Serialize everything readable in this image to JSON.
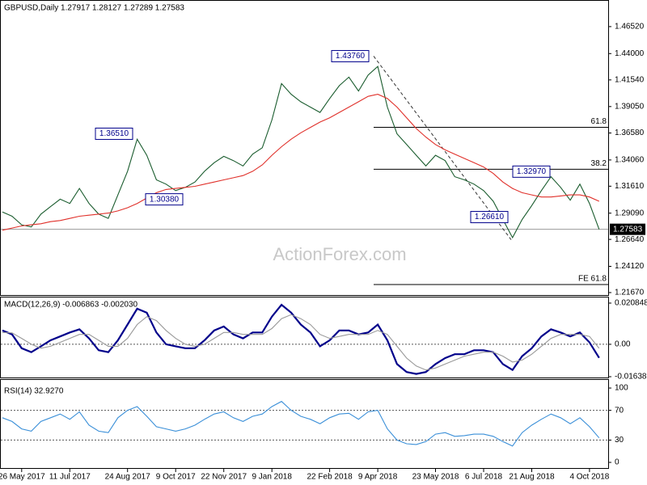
{
  "chart_data": [
    {
      "type": "line",
      "title": "GBPUSD,Daily  1.27917 1.28127 1.27289 1.27583",
      "watermark": "ActionForex.com",
      "categories": [
        null,
        null,
        "26 May 2017",
        null,
        null,
        null,
        null,
        "11 Jul 2017",
        null,
        null,
        null,
        null,
        null,
        "24 Aug 2017",
        null,
        null,
        null,
        null,
        "9 Oct 2017",
        null,
        null,
        null,
        null,
        "22 Nov 2017",
        null,
        null,
        null,
        null,
        "9 Jan 2018",
        null,
        null,
        null,
        null,
        null,
        "22 Feb 2018",
        null,
        null,
        null,
        null,
        "9 Apr 2018",
        null,
        null,
        null,
        null,
        null,
        "23 May 2018",
        null,
        null,
        null,
        null,
        "6 Jul 2018",
        null,
        null,
        null,
        null,
        "21 Aug 2018",
        null,
        null,
        null,
        null,
        null,
        "4 Oct 2018",
        null
      ],
      "series": [
        {
          "color": "#1a5c2e",
          "values": [
            1.292,
            1.288,
            1.28,
            1.278,
            1.29,
            1.297,
            1.304,
            1.3,
            1.314,
            1.3,
            1.29,
            1.286,
            1.308,
            1.33,
            1.36,
            1.345,
            1.322,
            1.318,
            1.312,
            1.315,
            1.32,
            1.33,
            1.338,
            1.344,
            1.34,
            1.335,
            1.346,
            1.352,
            1.378,
            1.412,
            1.402,
            1.395,
            1.39,
            1.385,
            1.398,
            1.41,
            1.418,
            1.405,
            1.42,
            1.428,
            1.39,
            1.365,
            1.355,
            1.345,
            1.335,
            1.345,
            1.34,
            1.325,
            1.322,
            1.318,
            1.312,
            1.302,
            1.285,
            1.268,
            1.285,
            1.298,
            1.312,
            1.325,
            1.315,
            1.303,
            1.318,
            1.3,
            1.27583
          ]
        },
        {
          "color": "#e0302a",
          "values": [
            1.275,
            1.277,
            1.279,
            1.28,
            1.281,
            1.283,
            1.284,
            1.286,
            1.288,
            1.289,
            1.29,
            1.291,
            1.293,
            1.296,
            1.3,
            1.305,
            1.31,
            1.313,
            1.314,
            1.315,
            1.316,
            1.318,
            1.32,
            1.322,
            1.324,
            1.326,
            1.33,
            1.336,
            1.345,
            1.353,
            1.36,
            1.366,
            1.371,
            1.376,
            1.38,
            1.385,
            1.39,
            1.395,
            1.4,
            1.402,
            1.398,
            1.39,
            1.38,
            1.37,
            1.362,
            1.355,
            1.35,
            1.346,
            1.342,
            1.338,
            1.334,
            1.328,
            1.32,
            1.314,
            1.31,
            1.308,
            1.306,
            1.306,
            1.307,
            1.308,
            1.308,
            1.306,
            1.302
          ]
        }
      ],
      "ylim": [
        1.2144,
        1.4893
      ],
      "yticks": [
        {
          "value": 1.4652,
          "label": "1.46520"
        },
        {
          "value": 1.44,
          "label": "1.44000"
        },
        {
          "value": 1.4154,
          "label": "1.41540"
        },
        {
          "value": 1.3905,
          "label": "1.39050"
        },
        {
          "value": 1.3658,
          "label": "1.36580"
        },
        {
          "value": 1.3406,
          "label": "1.34060"
        },
        {
          "value": 1.3161,
          "label": "1.31610"
        },
        {
          "value": 1.2909,
          "label": "1.29090"
        },
        {
          "value": 1.2664,
          "label": "1.26640"
        },
        {
          "value": 1.2412,
          "label": "1.24120"
        },
        {
          "value": 1.2167,
          "label": "1.21670"
        }
      ],
      "last_price": 1.27583,
      "annotations": [
        {
          "value": 1.4376,
          "label": "1.43760"
        },
        {
          "value": 1.3651,
          "label": "1.36510"
        },
        {
          "value": 1.3038,
          "label": "1.30380"
        },
        {
          "value": 1.3297,
          "label": "1.32970"
        },
        {
          "value": 1.2661,
          "label": "1.26610"
        }
      ],
      "levels": [
        {
          "value": 1.3711,
          "label": "61.8"
        },
        {
          "value": 1.3319,
          "label": "38.2"
        },
        {
          "value": 1.2242,
          "label": "FE 61.8"
        }
      ]
    },
    {
      "type": "line",
      "title": "MACD(12,26,9) -0.006863 -0.002030",
      "series": [
        {
          "color": "#00008b",
          "values": [
            0.007,
            0.005,
            -0.002,
            -0.004,
            -0.001,
            0.002,
            0.004,
            0.006,
            0.0076,
            0.003,
            -0.003,
            -0.004,
            0.002,
            0.01,
            0.018,
            0.016,
            0.006,
            0.0,
            -0.001,
            -0.002,
            -0.002,
            0.002,
            0.007,
            0.009,
            0.005,
            0.003,
            0.006,
            0.006,
            0.014,
            0.02,
            0.016,
            0.01,
            0.006,
            -0.001,
            0.002,
            0.007,
            0.007,
            0.005,
            0.006,
            0.01,
            0.002,
            -0.01,
            -0.014,
            -0.015,
            -0.014,
            -0.01,
            -0.007,
            -0.005,
            -0.005,
            -0.003,
            -0.003,
            -0.004,
            -0.01,
            -0.013,
            -0.006,
            -0.002,
            0.004,
            0.0076,
            0.006,
            0.004,
            0.006,
            0.001,
            -0.006863
          ]
        },
        {
          "color": "#999999",
          "values": [
            0.006,
            0.0058,
            0.003,
            0.0,
            -0.002,
            -0.001,
            0.001,
            0.003,
            0.005,
            0.005,
            0.002,
            -0.001,
            -0.001,
            0.003,
            0.01,
            0.014,
            0.012,
            0.007,
            0.003,
            0.0,
            -0.001,
            0.0,
            0.003,
            0.006,
            0.006,
            0.005,
            0.005,
            0.005,
            0.008,
            0.013,
            0.015,
            0.013,
            0.01,
            0.005,
            0.003,
            0.004,
            0.005,
            0.005,
            0.005,
            0.007,
            0.005,
            -0.001,
            -0.007,
            -0.011,
            -0.013,
            -0.012,
            -0.01,
            -0.008,
            -0.006,
            -0.005,
            -0.004,
            -0.004,
            -0.006,
            -0.009,
            -0.008,
            -0.005,
            -0.001,
            0.003,
            0.005,
            0.005,
            0.005,
            0.004,
            -0.00203
          ]
        }
      ],
      "ylim": [
        -0.0168,
        0.0237
      ],
      "yticks": [
        0.020848,
        {
          "value": 0,
          "label": "0.00"
        },
        -0.016389
      ],
      "dotted_levels": [
        0
      ]
    },
    {
      "type": "line",
      "title": "RSI(14) 32.9270",
      "series": [
        {
          "color": "#3a8fd8",
          "values": [
            60,
            55,
            45,
            42,
            55,
            60,
            65,
            58,
            68,
            50,
            42,
            40,
            60,
            70,
            75,
            62,
            48,
            45,
            42,
            45,
            50,
            58,
            65,
            68,
            60,
            55,
            62,
            65,
            75,
            82,
            70,
            62,
            58,
            52,
            60,
            65,
            66,
            58,
            68,
            70,
            45,
            30,
            25,
            24,
            28,
            38,
            40,
            35,
            36,
            38,
            38,
            35,
            28,
            22,
            40,
            50,
            58,
            65,
            60,
            52,
            60,
            48,
            32.927
          ]
        }
      ],
      "ylim": [
        -6.5,
        112
      ],
      "yticks": [
        100,
        70,
        30,
        0
      ],
      "dotted_levels": [
        70,
        30
      ]
    }
  ]
}
